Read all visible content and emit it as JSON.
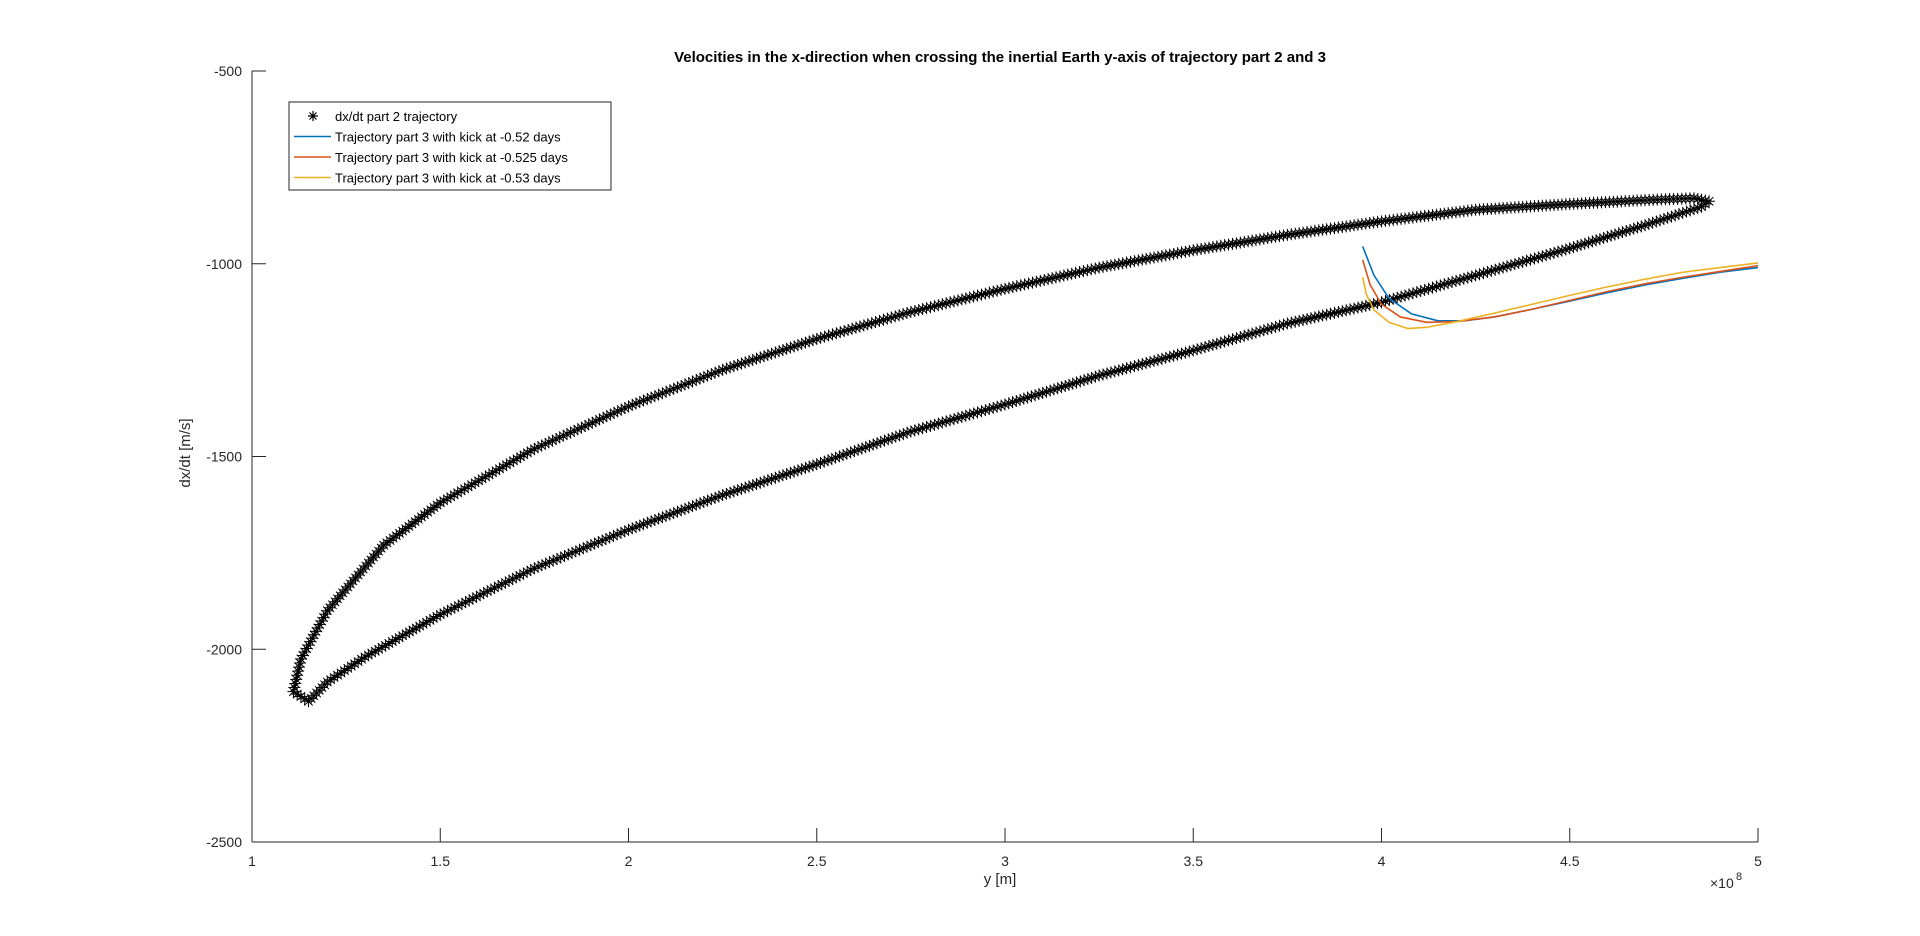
{
  "chart_data": {
    "type": "line",
    "title": "Velocities in the x-direction when crossing the inertial Earth y-axis of trajectory part 2 and 3",
    "xlabel": "y [m]",
    "ylabel": "dx/dt [m/s]",
    "x_multiplier_label": "×10",
    "x_multiplier_exponent": "8",
    "xlim": [
      1,
      5
    ],
    "ylim": [
      -2500,
      -500
    ],
    "x_ticks": [
      1,
      1.5,
      2,
      2.5,
      3,
      3.5,
      4,
      4.5,
      5
    ],
    "x_tick_labels": [
      "1",
      "1.5",
      "2",
      "2.5",
      "3",
      "3.5",
      "4",
      "4.5",
      "5"
    ],
    "y_ticks": [
      -2500,
      -2000,
      -1500,
      -1000,
      -500
    ],
    "y_tick_labels": [
      "-2500",
      "-2000",
      "-1500",
      "-1000",
      "-500"
    ],
    "grid": false,
    "legend_position": "top-left",
    "series": [
      {
        "name": "dx/dt part 2 trajectory",
        "style": "markers-asterisk",
        "color": "#000000",
        "x": [
          1.11,
          1.13,
          1.2,
          1.35,
          1.5,
          1.75,
          2.0,
          2.25,
          2.5,
          2.75,
          3.0,
          3.25,
          3.5,
          3.75,
          4.0,
          4.25,
          4.5,
          4.7,
          4.83,
          4.87,
          4.85,
          4.7,
          4.5,
          4.25,
          4.0,
          3.75,
          3.5,
          3.25,
          3.0,
          2.75,
          2.5,
          2.25,
          2.0,
          1.75,
          1.5,
          1.3,
          1.2,
          1.15,
          1.11
        ],
        "y": [
          -2110,
          -2025,
          -1900,
          -1730,
          -1620,
          -1480,
          -1370,
          -1275,
          -1195,
          -1125,
          -1065,
          -1010,
          -965,
          -925,
          -890,
          -860,
          -845,
          -835,
          -830,
          -838,
          -852,
          -900,
          -960,
          -1030,
          -1100,
          -1155,
          -1225,
          -1290,
          -1365,
          -1435,
          -1520,
          -1600,
          -1690,
          -1790,
          -1910,
          -2020,
          -2085,
          -2135,
          -2110
        ]
      },
      {
        "name": "Trajectory part 3 with kick at -0.52 days",
        "style": "line",
        "color": "#0072BD",
        "x": [
          3.95,
          3.98,
          4.02,
          4.08,
          4.15,
          4.22,
          4.3,
          4.4,
          4.5,
          4.6,
          4.7,
          4.8,
          4.9,
          5.0
        ],
        "y": [
          -955,
          -1030,
          -1090,
          -1130,
          -1148,
          -1148,
          -1138,
          -1118,
          -1097,
          -1075,
          -1055,
          -1038,
          -1022,
          -1010
        ]
      },
      {
        "name": "Trajectory part 3 with kick at -0.525 days",
        "style": "line",
        "color": "#D95319",
        "x": [
          3.95,
          3.97,
          4.0,
          4.05,
          4.12,
          4.2,
          4.3,
          4.4,
          4.5,
          4.6,
          4.7,
          4.8,
          4.9,
          5.0
        ],
        "y": [
          -990,
          -1055,
          -1105,
          -1138,
          -1152,
          -1150,
          -1138,
          -1118,
          -1095,
          -1072,
          -1052,
          -1035,
          -1020,
          -1005
        ]
      },
      {
        "name": "Trajectory part 3 with kick at -0.53 days",
        "style": "line",
        "color": "#EDB120",
        "x": [
          3.95,
          3.96,
          3.98,
          4.02,
          4.07,
          4.12,
          4.2,
          4.3,
          4.4,
          4.5,
          4.6,
          4.7,
          4.8,
          4.9,
          5.0
        ],
        "y": [
          -1035,
          -1080,
          -1120,
          -1152,
          -1168,
          -1165,
          -1150,
          -1128,
          -1105,
          -1082,
          -1060,
          -1040,
          -1022,
          -1010,
          -998
        ]
      }
    ]
  }
}
